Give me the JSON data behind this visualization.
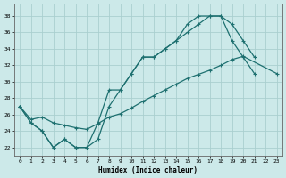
{
  "xlabel": "Humidex (Indice chaleur)",
  "bg_color": "#cce9e9",
  "grid_color": "#aacfcf",
  "line_color": "#1e7070",
  "xlim": [
    -0.5,
    23.5
  ],
  "ylim": [
    21.0,
    39.5
  ],
  "yticks": [
    22,
    24,
    26,
    28,
    30,
    32,
    34,
    36,
    38
  ],
  "xticks": [
    0,
    1,
    2,
    3,
    4,
    5,
    6,
    7,
    8,
    9,
    10,
    11,
    12,
    13,
    14,
    15,
    16,
    17,
    18,
    19,
    20,
    21,
    22,
    23
  ],
  "line1_x": [
    0,
    1,
    2,
    3,
    4,
    5,
    6,
    7,
    8,
    9,
    10,
    11,
    12,
    13,
    14,
    15,
    16,
    17,
    18,
    19,
    20,
    21
  ],
  "line1_y": [
    27,
    25,
    24,
    22,
    23,
    22,
    22,
    23,
    27,
    29,
    31,
    33,
    33,
    34,
    35,
    37,
    38,
    38,
    38,
    35,
    33,
    31
  ],
  "line2_x": [
    0,
    1,
    2,
    3,
    4,
    5,
    6,
    7,
    8,
    9,
    10,
    11,
    12,
    13,
    14,
    15,
    16,
    17,
    18,
    19,
    20,
    21,
    22,
    23
  ],
  "line2_y": [
    27,
    25,
    24,
    22,
    23,
    22,
    22,
    25,
    29,
    29,
    31,
    33,
    33,
    34,
    35,
    36,
    37,
    38,
    38,
    37,
    35,
    33,
    null,
    null
  ],
  "line3_x": [
    0,
    1,
    2,
    3,
    4,
    5,
    6,
    7,
    8,
    9,
    10,
    11,
    12,
    13,
    14,
    15,
    16,
    17,
    18,
    19,
    20,
    21,
    22,
    23
  ],
  "line3_y": [
    27,
    25.4,
    25.7,
    25.0,
    24.7,
    24.4,
    24.2,
    24.9,
    25.7,
    26.1,
    26.8,
    27.6,
    28.3,
    29.0,
    29.7,
    30.4,
    30.9,
    31.4,
    32.0,
    32.7,
    33.1,
    null,
    null,
    31
  ]
}
